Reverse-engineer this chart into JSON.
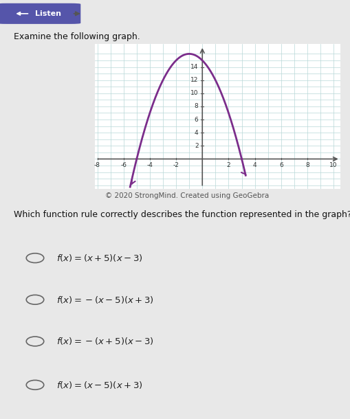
{
  "subtitle": "Examine the following graph.",
  "copyright": "© 2020 StrongMind. Created using GeoGebra",
  "question": "Which function rule correctly describes the function represented in the graph?",
  "option_texts": [
    "f(x) = (x + 5)(x − 3)",
    "f(x) = −(x − 5)(x + 3)",
    "f(x) = −(x + 5)(x − 3)",
    "f(x) = (x − 5)(x + 3)"
  ],
  "curve_color": "#7B2D8B",
  "grid_color": "#B8D8D8",
  "axis_color": "#555555",
  "page_bg": "#e8e8e8",
  "card_bg": "#f5f5f5",
  "graph_bg": "#ffffff",
  "xmin": -8,
  "xmax": 10,
  "ymin": -4,
  "ymax": 16,
  "xtick_vals": [
    -8,
    -6,
    -4,
    -2,
    2,
    4,
    6,
    8,
    10
  ],
  "ytick_vals": [
    2,
    4,
    6,
    8,
    10,
    12,
    14
  ],
  "func_roots": [
    -5,
    3
  ],
  "func_sign": -1,
  "btn_color": "#5555aa",
  "btn_text_color": "#ffffff"
}
